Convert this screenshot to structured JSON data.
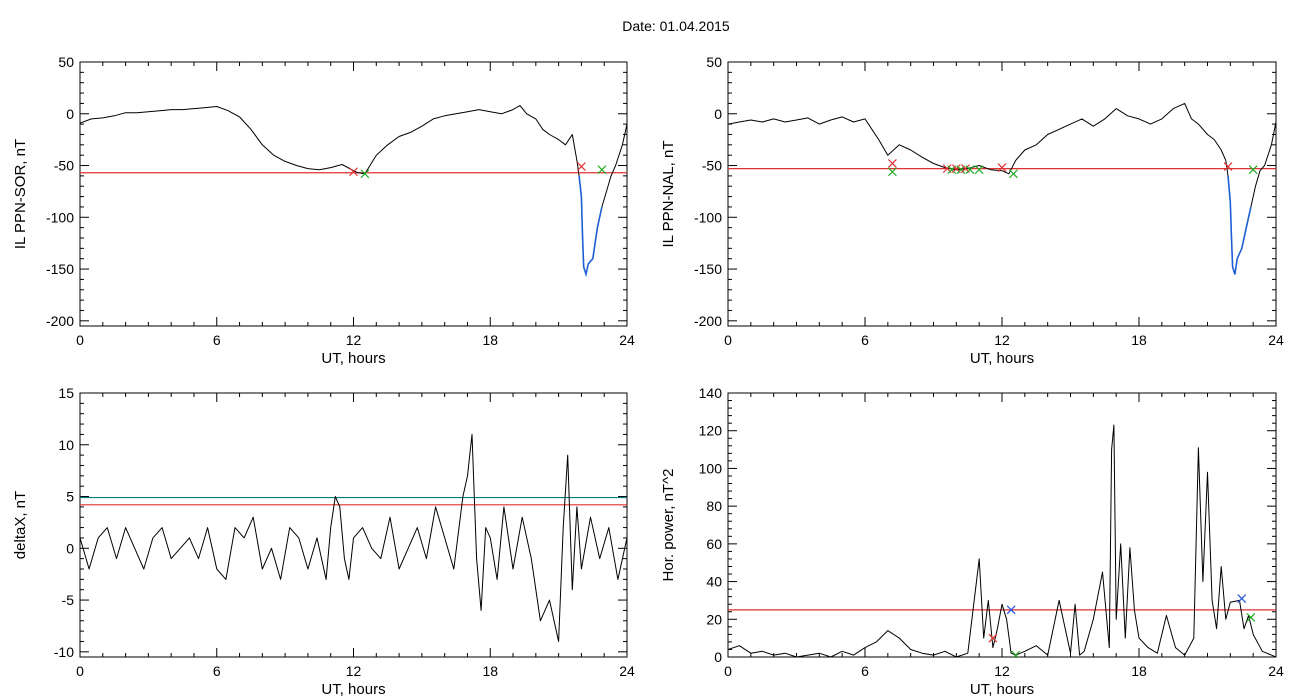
{
  "title": "Date:  01.04.2015",
  "colors": {
    "trace": "#000000",
    "threshold_red": "#e03030",
    "threshold_teal": "#008080",
    "segment_blue": "#1f5fd6",
    "marker_red": "#e03030",
    "marker_green": "#22aa22",
    "marker_blue": "#2255dd"
  },
  "chart_data": [
    {
      "type": "line",
      "xlabel": "UT, hours",
      "ylabel": "IL PPN-SOR, nT",
      "xlim": [
        0,
        24
      ],
      "ylim": [
        -205,
        50
      ],
      "xticks": [
        0,
        6,
        12,
        18,
        24
      ],
      "xtick_labels": [
        "0",
        "6",
        "12",
        "18",
        "24"
      ],
      "yticks": [
        50,
        0,
        -50,
        -100,
        -150,
        -200
      ],
      "ytick_labels": [
        "50",
        "0",
        "-50",
        "-100",
        "-150",
        "-200"
      ],
      "grid": false,
      "series": [
        {
          "x": [
            0,
            0.5,
            1,
            1.5,
            2,
            2.5,
            3,
            3.5,
            4,
            4.5,
            5,
            5.5,
            6,
            6.5,
            7,
            7.5,
            8,
            8.5,
            9,
            9.5,
            10,
            10.5,
            11,
            11.5,
            12,
            12.2,
            12.5,
            13,
            13.5,
            14,
            14.5,
            15,
            15.5,
            16,
            16.5,
            17,
            17.5,
            18,
            18.5,
            19,
            19.3,
            19.6,
            20,
            20.3,
            20.6,
            21,
            21.3,
            21.6,
            21.8,
            21.9,
            22,
            22.05,
            22.1,
            22.2,
            22.3,
            22.5,
            22.7,
            22.9,
            23.1,
            23.3,
            23.5,
            23.8,
            24
          ],
          "y": [
            -9,
            -5,
            -4,
            -2,
            1,
            1,
            2,
            3,
            4,
            4,
            5,
            6,
            7,
            3,
            -3,
            -15,
            -30,
            -40,
            -46,
            -50,
            -53,
            -54,
            -52,
            -49,
            -55,
            -57,
            -58,
            -40,
            -30,
            -22,
            -18,
            -12,
            -5,
            -2,
            0,
            2,
            4,
            2,
            0,
            4,
            8,
            0,
            -5,
            -15,
            -20,
            -25,
            -30,
            -20,
            -45,
            -60,
            -80,
            -120,
            -148,
            -155,
            -145,
            -140,
            -110,
            -90,
            -75,
            -60,
            -50,
            -30,
            -10
          ]
        }
      ],
      "threshold_lines": [
        {
          "y": -57,
          "color": "#e03030"
        }
      ],
      "blue_segments": [
        {
          "x_start": 21.9,
          "x_end": 22.9
        }
      ],
      "markers": [
        {
          "x": 12.0,
          "y": -56,
          "color": "#e03030"
        },
        {
          "x": 12.5,
          "y": -58,
          "color": "#22aa22"
        },
        {
          "x": 22.0,
          "y": -51,
          "color": "#e03030"
        },
        {
          "x": 22.9,
          "y": -54,
          "color": "#22aa22"
        }
      ]
    },
    {
      "type": "line",
      "xlabel": "UT, hours",
      "ylabel": "IL PPN-NAL, nT",
      "xlim": [
        0,
        24
      ],
      "ylim": [
        -205,
        50
      ],
      "xticks": [
        0,
        6,
        12,
        18,
        24
      ],
      "xtick_labels": [
        "0",
        "6",
        "12",
        "18",
        "24"
      ],
      "yticks": [
        50,
        0,
        -50,
        -100,
        -150,
        -200
      ],
      "ytick_labels": [
        "50",
        "0",
        "-50",
        "-100",
        "-150",
        "-200"
      ],
      "grid": false,
      "series": [
        {
          "x": [
            0,
            0.5,
            1,
            1.5,
            2,
            2.5,
            3,
            3.5,
            4,
            4.5,
            5,
            5.5,
            6,
            6.3,
            6.6,
            7,
            7.5,
            8,
            8.5,
            9,
            9.5,
            10,
            10.5,
            11,
            11.5,
            12,
            12.3,
            12.6,
            13,
            13.5,
            14,
            14.5,
            15,
            15.5,
            16,
            16.5,
            17,
            17.5,
            18,
            18.5,
            19,
            19.5,
            20,
            20.3,
            20.6,
            21,
            21.3,
            21.6,
            21.8,
            21.9,
            22,
            22.05,
            22.1,
            22.2,
            22.3,
            22.5,
            22.7,
            22.9,
            23.1,
            23.3,
            23.5,
            23.8,
            24
          ],
          "y": [
            -10,
            -8,
            -6,
            -8,
            -5,
            -8,
            -6,
            -4,
            -10,
            -6,
            -3,
            -8,
            -5,
            -15,
            -25,
            -40,
            -30,
            -35,
            -42,
            -48,
            -52,
            -54,
            -53,
            -50,
            -54,
            -55,
            -58,
            -45,
            -35,
            -30,
            -20,
            -15,
            -10,
            -5,
            -12,
            -5,
            5,
            -2,
            -5,
            -10,
            -5,
            5,
            10,
            -5,
            -10,
            -20,
            -25,
            -35,
            -45,
            -60,
            -85,
            -120,
            -148,
            -155,
            -140,
            -130,
            -110,
            -90,
            -70,
            -55,
            -50,
            -30,
            -8
          ]
        }
      ],
      "threshold_lines": [
        {
          "y": -53,
          "color": "#e03030"
        }
      ],
      "blue_segments": [
        {
          "x_start": 21.9,
          "x_end": 22.9
        }
      ],
      "markers": [
        {
          "x": 7.2,
          "y": -48,
          "color": "#e03030"
        },
        {
          "x": 7.2,
          "y": -56,
          "color": "#22aa22"
        },
        {
          "x": 9.6,
          "y": -53,
          "color": "#e03030"
        },
        {
          "x": 9.8,
          "y": -54,
          "color": "#22aa22"
        },
        {
          "x": 10.0,
          "y": -53,
          "color": "#e03030"
        },
        {
          "x": 10.2,
          "y": -54,
          "color": "#22aa22"
        },
        {
          "x": 10.4,
          "y": -53,
          "color": "#e03030"
        },
        {
          "x": 10.6,
          "y": -54,
          "color": "#22aa22"
        },
        {
          "x": 11.0,
          "y": -54,
          "color": "#22aa22"
        },
        {
          "x": 12.0,
          "y": -52,
          "color": "#e03030"
        },
        {
          "x": 12.5,
          "y": -58,
          "color": "#22aa22"
        },
        {
          "x": 21.9,
          "y": -51,
          "color": "#e03030"
        },
        {
          "x": 23.0,
          "y": -54,
          "color": "#22aa22"
        }
      ]
    },
    {
      "type": "line",
      "xlabel": "UT, hours",
      "ylabel": "deltaX, nT",
      "xlim": [
        0,
        24
      ],
      "ylim": [
        -10.5,
        15
      ],
      "xticks": [
        0,
        6,
        12,
        18,
        24
      ],
      "xtick_labels": [
        "0",
        "6",
        "12",
        "18",
        "24"
      ],
      "yticks": [
        15,
        10,
        5,
        0,
        -5,
        -10
      ],
      "ytick_labels": [
        "15",
        "10",
        "5",
        "0",
        "-5",
        "-10"
      ],
      "grid": false,
      "series": [
        {
          "x": [
            0,
            0.4,
            0.8,
            1.2,
            1.6,
            2.0,
            2.4,
            2.8,
            3.2,
            3.6,
            4.0,
            4.4,
            4.8,
            5.2,
            5.6,
            6.0,
            6.4,
            6.8,
            7.2,
            7.6,
            8.0,
            8.4,
            8.8,
            9.2,
            9.6,
            10.0,
            10.4,
            10.8,
            11.0,
            11.2,
            11.4,
            11.6,
            11.8,
            12.0,
            12.4,
            12.8,
            13.2,
            13.6,
            14.0,
            14.4,
            14.8,
            15.2,
            15.6,
            16.0,
            16.4,
            16.8,
            17.0,
            17.2,
            17.4,
            17.6,
            17.8,
            18.0,
            18.3,
            18.6,
            19.0,
            19.4,
            19.8,
            20.2,
            20.6,
            21.0,
            21.2,
            21.4,
            21.6,
            21.8,
            22.0,
            22.4,
            22.8,
            23.2,
            23.6,
            24
          ],
          "y": [
            1,
            -2,
            1,
            2,
            -1,
            2,
            0,
            -2,
            1,
            2,
            -1,
            0,
            1,
            -1,
            2,
            -2,
            -3,
            2,
            1,
            3,
            -2,
            0,
            -3,
            2,
            1,
            -2,
            1,
            -3,
            2,
            5,
            4,
            -1,
            -3,
            1,
            2,
            0,
            -1,
            3,
            -2,
            0,
            2,
            -1,
            4,
            1,
            -2,
            5,
            7,
            11,
            -1,
            -6,
            2,
            1,
            -3,
            4,
            -2,
            3,
            -1,
            -7,
            -5,
            -9,
            2,
            9,
            -4,
            4,
            -2,
            3,
            -1,
            2,
            -3,
            1
          ]
        }
      ],
      "threshold_lines": [
        {
          "y": 4.9,
          "color": "#008080"
        },
        {
          "y": 4.2,
          "color": "#e03030"
        }
      ],
      "blue_segments": [],
      "markers": []
    },
    {
      "type": "line",
      "xlabel": "UT, hours",
      "ylabel": "Hor. power, nT^2",
      "xlim": [
        0,
        24
      ],
      "ylim": [
        0,
        140
      ],
      "xticks": [
        0,
        6,
        12,
        18,
        24
      ],
      "xtick_labels": [
        "0",
        "6",
        "12",
        "18",
        "24"
      ],
      "yticks": [
        140,
        120,
        100,
        80,
        60,
        40,
        20,
        0
      ],
      "ytick_labels": [
        "140",
        "120",
        "100",
        "80",
        "60",
        "40",
        "20",
        "0"
      ],
      "grid": false,
      "series": [
        {
          "x": [
            0,
            0.5,
            1,
            1.5,
            2,
            2.5,
            3,
            3.5,
            4,
            4.5,
            5,
            5.5,
            6,
            6.5,
            7,
            7.5,
            8,
            8.5,
            9,
            9.5,
            10,
            10.5,
            11.0,
            11.2,
            11.4,
            11.6,
            11.8,
            12.0,
            12.2,
            12.4,
            12.6,
            12.8,
            13.0,
            13.5,
            14,
            14.5,
            15,
            15.2,
            15.4,
            15.6,
            16.0,
            16.4,
            16.7,
            16.8,
            16.9,
            17.0,
            17.2,
            17.4,
            17.6,
            17.8,
            18.0,
            18.4,
            18.8,
            19.2,
            19.6,
            20.0,
            20.4,
            20.6,
            20.8,
            21.0,
            21.2,
            21.4,
            21.6,
            21.8,
            22.0,
            22.4,
            22.6,
            22.8,
            23.0,
            23.4,
            23.8,
            24
          ],
          "y": [
            4,
            6,
            2,
            3,
            1,
            2,
            0,
            1,
            2,
            0,
            3,
            1,
            5,
            8,
            14,
            10,
            4,
            2,
            1,
            3,
            0,
            2,
            52,
            10,
            30,
            5,
            15,
            28,
            20,
            2,
            1,
            2,
            3,
            6,
            1,
            30,
            2,
            28,
            1,
            3,
            20,
            45,
            5,
            110,
            123,
            20,
            60,
            10,
            58,
            25,
            10,
            5,
            2,
            22,
            5,
            1,
            10,
            111,
            40,
            98,
            30,
            15,
            48,
            20,
            29,
            30,
            15,
            22,
            12,
            3,
            1,
            0
          ]
        }
      ],
      "threshold_lines": [
        {
          "y": 25,
          "color": "#e03030"
        }
      ],
      "blue_segments": [],
      "markers": [
        {
          "x": 11.6,
          "y": 10,
          "color": "#e03030"
        },
        {
          "x": 12.4,
          "y": 25,
          "color": "#2255dd"
        },
        {
          "x": 12.6,
          "y": 1,
          "color": "#22aa22"
        },
        {
          "x": 22.5,
          "y": 31,
          "color": "#2255dd"
        },
        {
          "x": 22.9,
          "y": 21,
          "color": "#22aa22"
        }
      ]
    }
  ]
}
